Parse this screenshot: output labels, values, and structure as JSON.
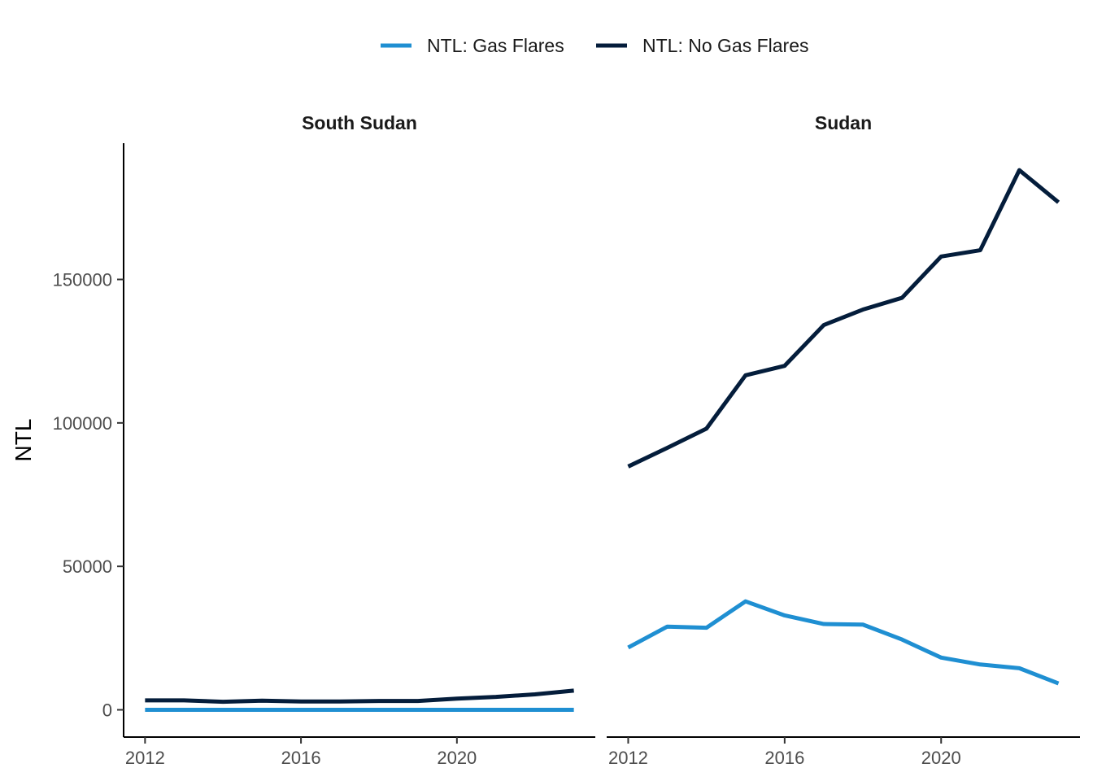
{
  "chart_data": {
    "type": "line",
    "ylabel": "NTL",
    "xlabel": "",
    "legend_position": "top",
    "x_ticks": [
      2012,
      2016,
      2020
    ],
    "y_ticks": [
      0,
      50000,
      100000,
      150000
    ],
    "xlim": [
      2011.45,
      2023.55
    ],
    "ylim": [
      -9500,
      197500
    ],
    "grid": false,
    "series_defs": [
      {
        "name": "NTL: Gas Flares",
        "color": "#1f8fd2"
      },
      {
        "name": "NTL: No Gas Flares",
        "color": "#041d3b"
      }
    ],
    "panels": [
      {
        "title": "South Sudan",
        "x": [
          2012,
          2013,
          2014,
          2015,
          2016,
          2017,
          2018,
          2019,
          2020,
          2021,
          2022,
          2023
        ],
        "series": [
          {
            "name": "NTL: Gas Flares",
            "values": [
              0,
              0,
              0,
              0,
              0,
              0,
              0,
              0,
              0,
              0,
              0,
              0
            ]
          },
          {
            "name": "NTL: No Gas Flares",
            "values": [
              3300,
              3300,
              2800,
              3200,
              2900,
              2900,
              3100,
              3100,
              3900,
              4500,
              5400,
              6700
            ]
          }
        ]
      },
      {
        "title": "Sudan",
        "x": [
          2012,
          2013,
          2014,
          2015,
          2016,
          2017,
          2018,
          2019,
          2020,
          2021,
          2022,
          2023
        ],
        "series": [
          {
            "name": "NTL: Gas Flares",
            "values": [
              21700,
              29000,
              28600,
              37800,
              32900,
              29900,
              29700,
              24500,
              18200,
              15800,
              14500,
              9200
            ]
          },
          {
            "name": "NTL: No Gas Flares",
            "values": [
              84800,
              91300,
              98000,
              116600,
              119900,
              134100,
              139500,
              143600,
              158000,
              160200,
              188100,
              176900
            ]
          }
        ]
      }
    ]
  }
}
